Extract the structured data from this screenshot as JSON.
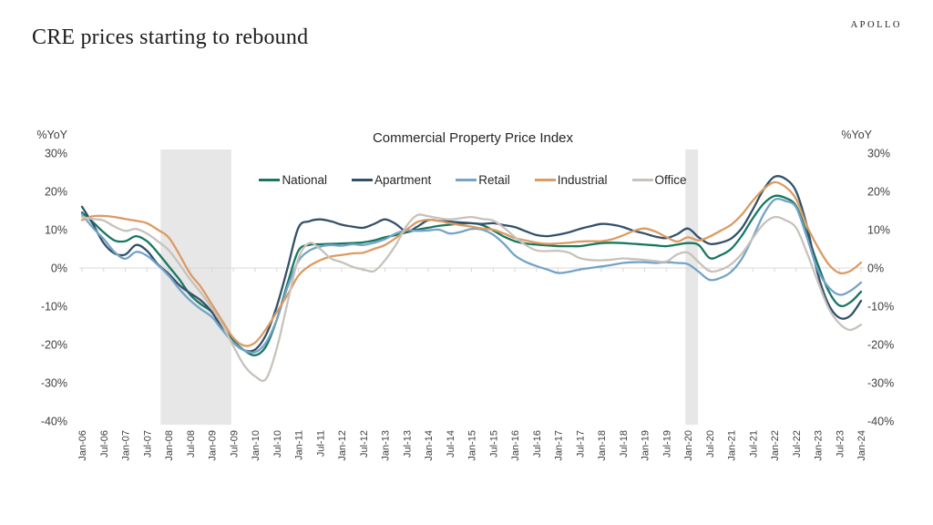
{
  "header": {
    "title": "CRE prices starting to rebound",
    "logo": "APOLLO"
  },
  "chart_data": {
    "type": "line",
    "title": "Commercial Property Price Index",
    "y_axis_label_left": "%YoY",
    "y_axis_label_right": "%YoY",
    "y_tick_values": [
      30,
      20,
      10,
      0,
      -10,
      -20,
      -30,
      -40
    ],
    "y_tick_labels": [
      "30%",
      "20%",
      "10%",
      "0%",
      "-10%",
      "-20%",
      "-30%",
      "-40%"
    ],
    "ylim": [
      -40,
      30
    ],
    "grid": "zero-line-only",
    "legend_position": "top-center",
    "x_tick_labels": [
      "Jan-06",
      "Jul-06",
      "Jan-07",
      "Jul-07",
      "Jan-08",
      "Jul-08",
      "Jan-09",
      "Jul-09",
      "Jan-10",
      "Jul-10",
      "Jan-11",
      "Jul-11",
      "Jan-12",
      "Jul-12",
      "Jan-13",
      "Jul-13",
      "Jan-14",
      "Jul-14",
      "Jan-15",
      "Jul-15",
      "Jan-16",
      "Jul-16",
      "Jan-17",
      "Jul-17",
      "Jan-18",
      "Jul-18",
      "Jan-19",
      "Jul-19",
      "Jan-20",
      "Jul-20",
      "Jan-21",
      "Jul-21",
      "Jan-22",
      "Jul-22",
      "Jan-23",
      "Jul-23",
      "Jan-24"
    ],
    "x_months_per_point": 3,
    "x_start": "Jan-06",
    "x_end": "Jan-24",
    "recession_shading": [
      {
        "name": "global-financial-crisis-band",
        "start_index": 21.8,
        "end_index": 41.4
      },
      {
        "name": "covid-recession-band",
        "start_index": 167.3,
        "end_index": 170.8
      }
    ],
    "colors": {
      "axis": "#d9d9d9",
      "band": "#e7e7e7",
      "tick_text": "#404040",
      "title_text": "#262626"
    },
    "series": [
      {
        "name": "National",
        "color": "#17785f",
        "values": [
          14.5,
          12,
          9.3,
          7.2,
          7,
          8.3,
          7,
          4,
          0.5,
          -3,
          -7,
          -9.5,
          -11.5,
          -15.5,
          -19,
          -21.5,
          -22.8,
          -20.5,
          -13.5,
          -4,
          4.5,
          6,
          6.2,
          6.3,
          6.4,
          6.5,
          6.7,
          7.2,
          8,
          8.6,
          9.3,
          10,
          10.5,
          11,
          11.3,
          11.6,
          11.7,
          11.2,
          9.8,
          8.2,
          7,
          6.4,
          6.1,
          5.9,
          5.7,
          5.7,
          5.7,
          6.1,
          6.5,
          6.6,
          6.5,
          6.3,
          6.1,
          5.9,
          5.7,
          6.1,
          6.5,
          6,
          2.6,
          3.3,
          5,
          8.5,
          13,
          16.8,
          18.8,
          18.3,
          16.2,
          9,
          1,
          -6,
          -9.8,
          -9,
          -6.2
        ]
      },
      {
        "name": "Apartment",
        "color": "#33506b",
        "values": [
          16,
          11.5,
          6.5,
          3.8,
          3.5,
          6,
          4.5,
          1,
          -1.5,
          -4.5,
          -6.6,
          -8.5,
          -11.5,
          -16,
          -19.5,
          -21.5,
          -21.3,
          -17.5,
          -10,
          0,
          10.5,
          12.2,
          12.7,
          12.2,
          11.3,
          10.8,
          10.5,
          11.5,
          12.7,
          11.5,
          9.5,
          10.8,
          12.5,
          12.3,
          12.1,
          11.9,
          11.7,
          11.5,
          11.7,
          11.2,
          10.7,
          9.6,
          8.6,
          8.3,
          8.7,
          9.3,
          10.2,
          10.9,
          11.5,
          11.3,
          10.7,
          9.7,
          9,
          8.2,
          7.8,
          8.8,
          10.3,
          8,
          6.3,
          6.6,
          7.7,
          10.5,
          15.3,
          20.5,
          23.8,
          23.3,
          20,
          11,
          -1.5,
          -9.5,
          -13,
          -12.5,
          -8.6
        ]
      },
      {
        "name": "Retail",
        "color": "#74a3c7",
        "values": [
          14,
          10.5,
          7.6,
          4.2,
          2.4,
          4.2,
          3.2,
          0.8,
          -2,
          -5.5,
          -8.5,
          -10.8,
          -12.8,
          -16.3,
          -19.5,
          -21.5,
          -22,
          -19.5,
          -13.5,
          -5,
          1.8,
          4.5,
          5.6,
          6,
          5.8,
          6.2,
          6,
          6.6,
          7.5,
          9,
          9.8,
          9.7,
          9.8,
          10,
          9,
          9.4,
          10.2,
          10,
          8.7,
          6.3,
          3.3,
          1.6,
          0.5,
          -0.4,
          -1.3,
          -1,
          -0.4,
          0,
          0.4,
          0.8,
          1.3,
          1.5,
          1.5,
          1.3,
          1.5,
          1.3,
          1,
          -1,
          -3.1,
          -2.6,
          -1,
          2.5,
          8,
          14,
          17.8,
          17.5,
          15.8,
          8,
          -0.5,
          -5,
          -7,
          -6,
          -3.8
        ]
      },
      {
        "name": "Industrial",
        "color": "#dc9b62",
        "values": [
          12.5,
          13.5,
          13.6,
          13.3,
          12.8,
          12.3,
          11.7,
          10,
          8,
          3.5,
          -1.5,
          -5,
          -9.5,
          -14,
          -18.3,
          -20.3,
          -19.5,
          -16,
          -11.5,
          -7,
          -2,
          0.5,
          2,
          3,
          3.4,
          3.8,
          4,
          5,
          6,
          7.8,
          10,
          12,
          12.6,
          12.3,
          11.7,
          11.2,
          10.8,
          10.3,
          10,
          9,
          7.8,
          7.2,
          6.6,
          6.3,
          6.4,
          6.6,
          6.9,
          7,
          7,
          7.5,
          8.5,
          9.7,
          10.3,
          9.5,
          8.1,
          6.9,
          8,
          7.2,
          8.2,
          9.7,
          11.3,
          14,
          17.6,
          20.6,
          22.4,
          21.2,
          18,
          11,
          5.5,
          1,
          -1.3,
          -0.8,
          1.4
        ]
      },
      {
        "name": "Office",
        "color": "#c7c2bb",
        "values": [
          13.3,
          12.8,
          12.4,
          10.8,
          9.7,
          10.2,
          9,
          7,
          4.7,
          1,
          -3,
          -6.5,
          -10.5,
          -15,
          -20.5,
          -25.5,
          -28.3,
          -29,
          -21,
          -9,
          2.5,
          6.5,
          5,
          2.5,
          1.5,
          0.3,
          -0.4,
          -0.8,
          2,
          6,
          11,
          13.8,
          13.5,
          13,
          12.7,
          13,
          13.3,
          12.8,
          12.4,
          10.5,
          8.1,
          6,
          4.6,
          4.4,
          4.5,
          4,
          2.6,
          2.1,
          2,
          2.2,
          2.5,
          2.3,
          2.1,
          1.8,
          1.7,
          3.5,
          4,
          1.5,
          -0.8,
          -0.5,
          1,
          3.8,
          7.8,
          11.5,
          13.3,
          12.5,
          10.5,
          4,
          -3.5,
          -10.5,
          -14.5,
          -16.2,
          -14.8
        ]
      }
    ]
  }
}
